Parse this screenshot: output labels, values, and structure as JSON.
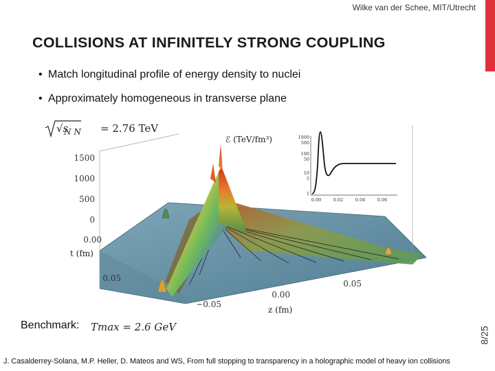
{
  "header": {
    "author": "Wilke van der Schee, MIT/Utrecht",
    "title": "COLLISIONS AT INFINITELY STRONG COUPLING",
    "accent_color": "#e0313a"
  },
  "bullets": [
    "Match longitudinal profile of energy density to nuclei",
    "Approximately homogeneous in transverse plane"
  ],
  "figure": {
    "energy_label": "√s",
    "energy_sub": "N N",
    "energy_value": "= 2.76 TeV",
    "z_axis_label": "ℰ (TeV/fm³)",
    "t_axis_label": "t (fm)",
    "z_axis_label2": "z (fm)",
    "vertical_ticks": [
      "1500",
      "1000",
      "500",
      "0"
    ],
    "t_ticks": [
      "0.00",
      "0.05"
    ],
    "z_ticks": [
      "−0.05",
      "0.00",
      "0.05"
    ],
    "inset_y_ticks": [
      "1000",
      "500",
      "100",
      "50",
      "10",
      "5",
      "1"
    ],
    "inset_x_ticks": [
      "0.00",
      "0.02",
      "0.04",
      "0.06"
    ]
  },
  "benchmark": {
    "label": "Benchmark:",
    "formula": "Tmax = 2.6 GeV"
  },
  "slide_number": "8/25",
  "footer": "J. Casalderrey-Solana, M.P. Heller, D. Mateos and WS, From full stopping to transparency in a holographic model of heavy ion collisions"
}
